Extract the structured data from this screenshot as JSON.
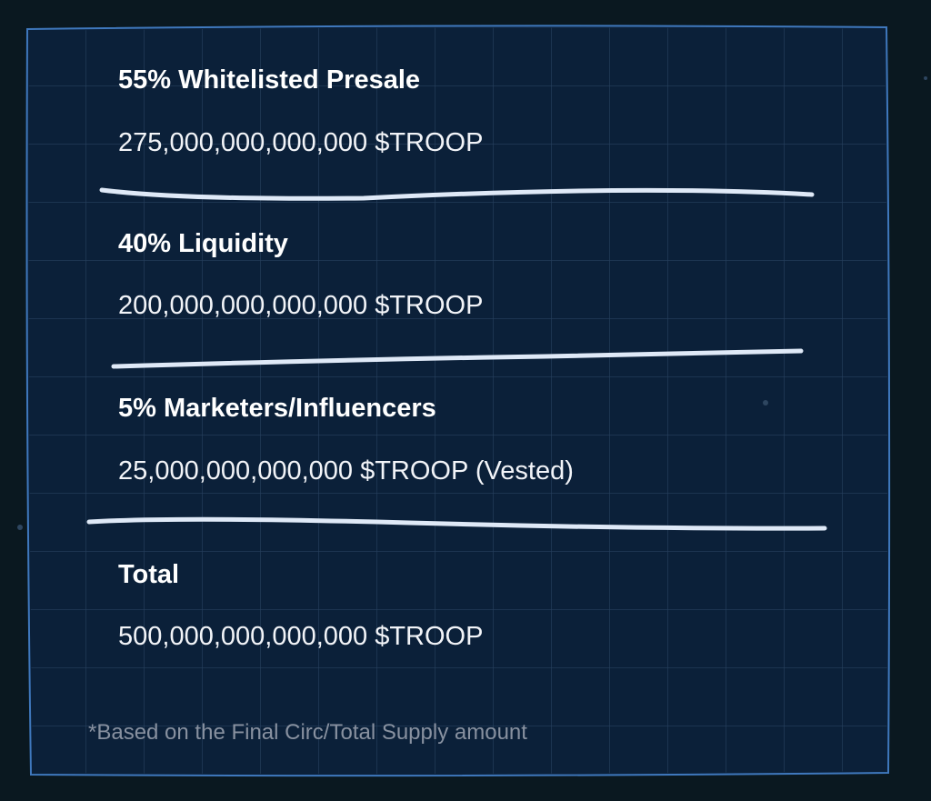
{
  "sections": [
    {
      "title": "55% Whitelisted Presale",
      "amount": "275,000,000,000,000 $TROOP"
    },
    {
      "title": "40% Liquidity",
      "amount": "200,000,000,000,000 $TROOP"
    },
    {
      "title": "5% Marketers/Influencers",
      "amount": "25,000,000,000,000 $TROOP (Vested)"
    },
    {
      "title": "Total",
      "amount": "500,000,000,000,000 $TROOP"
    }
  ],
  "footnote": "*Based on the Final Circ/Total Supply amount"
}
